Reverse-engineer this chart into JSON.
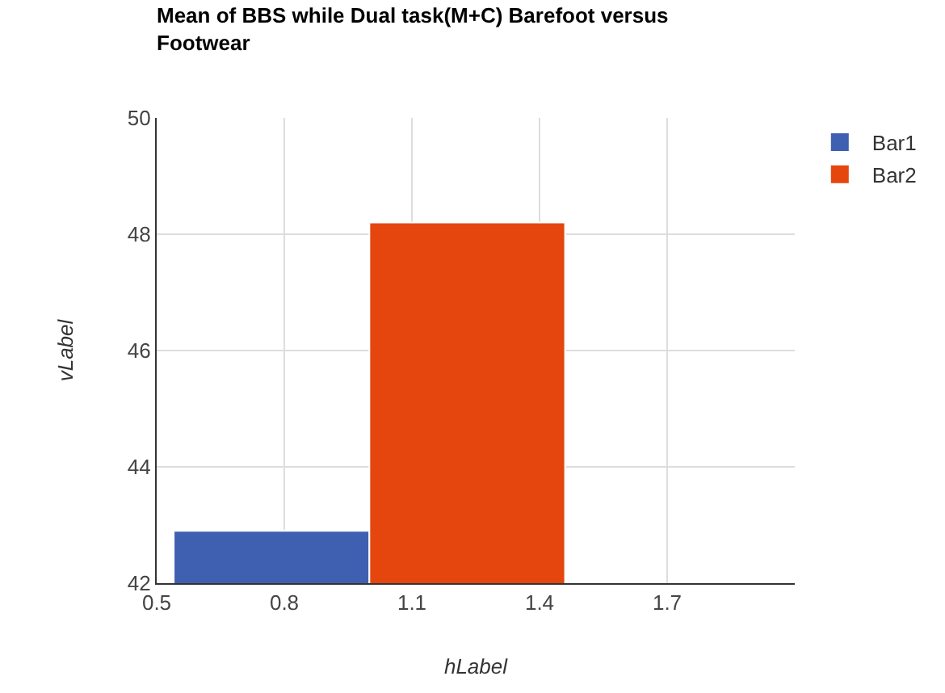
{
  "chart_data": {
    "type": "bar",
    "title": "Mean of BBS while Dual task(M+C) Barefoot versus Footwear",
    "xlabel": "hLabel",
    "ylabel": "vLabel",
    "series": [
      {
        "name": "Bar1",
        "color": "#3f5fb0",
        "x": [
          0.77
        ],
        "values": [
          42.9
        ]
      },
      {
        "name": "Bar2",
        "color": "#e5460e",
        "x": [
          1.23
        ],
        "values": [
          48.2
        ]
      }
    ],
    "xlim": [
      0.5,
      2.0
    ],
    "xticks": [
      0.5,
      0.8,
      1.1,
      1.4,
      1.7
    ],
    "ylim": [
      42,
      50
    ],
    "yticks": [
      42,
      44,
      46,
      48,
      50
    ],
    "grid": true,
    "legend": "top right"
  }
}
